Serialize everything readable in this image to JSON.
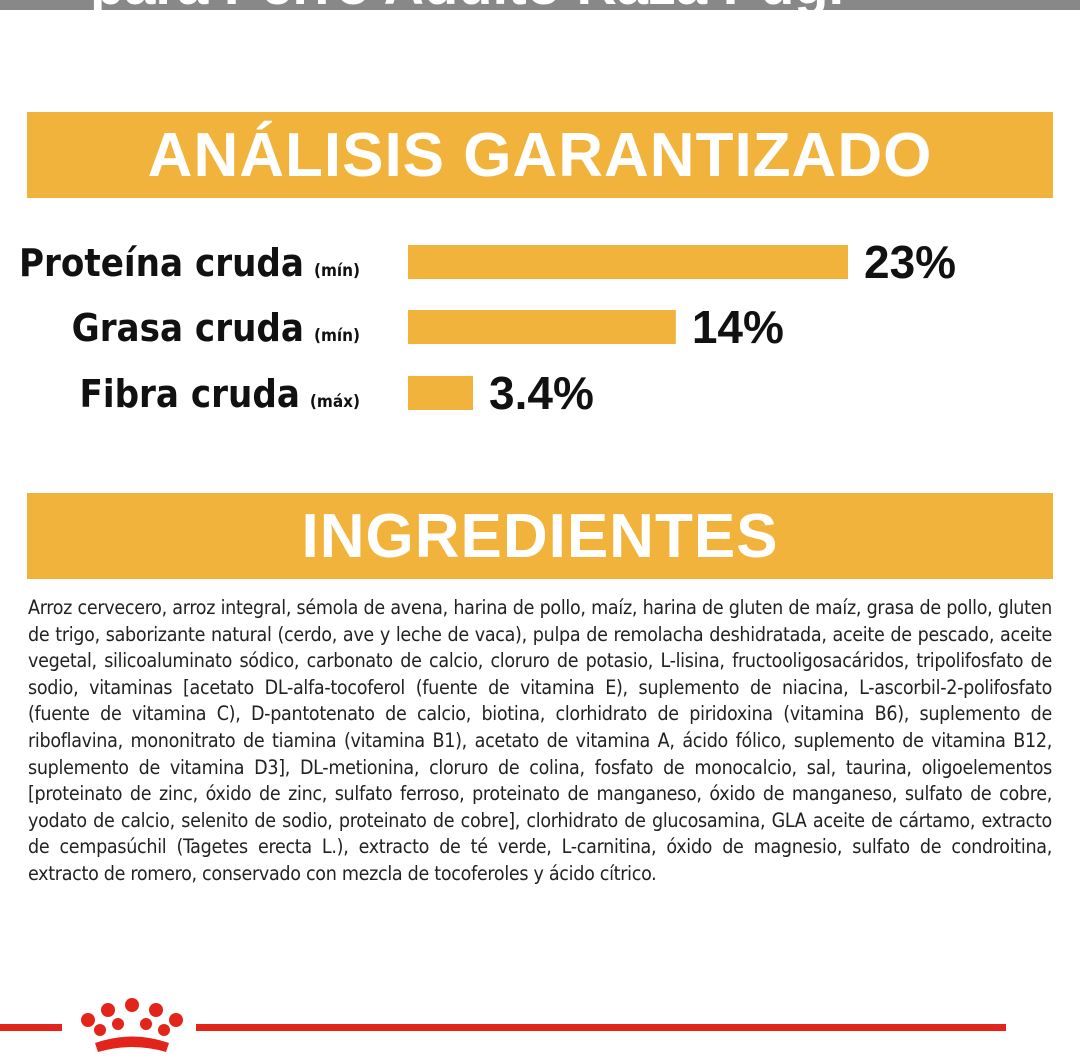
{
  "header": {
    "title": "para Perro Adulto Raza Pug."
  },
  "analysis": {
    "title": "ANÁLISIS GARANTIZADO"
  },
  "chart_data": {
    "type": "hbar",
    "categories": [
      "Proteína cruda",
      "Grasa cruda",
      "Fibra cruda"
    ],
    "qualifiers": [
      "(mín)",
      "(mín)",
      "(máx)"
    ],
    "values": [
      23,
      14,
      3.4
    ],
    "value_labels": [
      "23%",
      "14%",
      "3.4%"
    ],
    "color": "#f2b33d",
    "xlim": [
      0,
      23
    ]
  },
  "ingredients": {
    "title": "INGREDIENTES",
    "text": "Arroz cervecero, arroz integral, sémola de avena, harina de pollo, maíz, harina de gluten de maíz, grasa de pollo, gluten de trigo, saborizante natural (cerdo, ave y leche de vaca), pulpa de remolacha deshidratada, aceite de pescado, aceite vegetal, silicoaluminato sódico, carbonato de calcio, cloruro de potasio, L-lisina, fructooligosacáridos, tripolifosfato de sodio, vitaminas [acetato DL-alfa-tocoferol (fuente de vitamina E), suplemento de niacina, L-ascorbil-2-polifosfato (fuente de vitamina C), D-pantotenato de calcio, biotina, clorhidrato de piridoxina (vitamina B6), suplemento de riboflavina, mononitrato de tiamina (vitamina B1), acetato de vitamina A, ácido fólico, suplemento de vitamina B12, suplemento de vitamina D3], DL-metionina, cloruro de colina, fosfato de monocalcio, sal, taurina, oligoelementos [proteinato de zinc, óxido de zinc, sulfato ferroso, proteinato de manganeso, óxido de manganeso, sulfato de cobre, yodato de calcio, selenito de sodio, proteinato de cobre], clorhidrato de glucosamina, GLA aceite de cártamo, extracto de cempasúchil (Tagetes erecta L.), extracto de té verde, L-carnitina, óxido de magnesio, sulfato de condroitina, extracto de romero, conservado con mezcla de tocoferoles y ácido cítrico."
  }
}
